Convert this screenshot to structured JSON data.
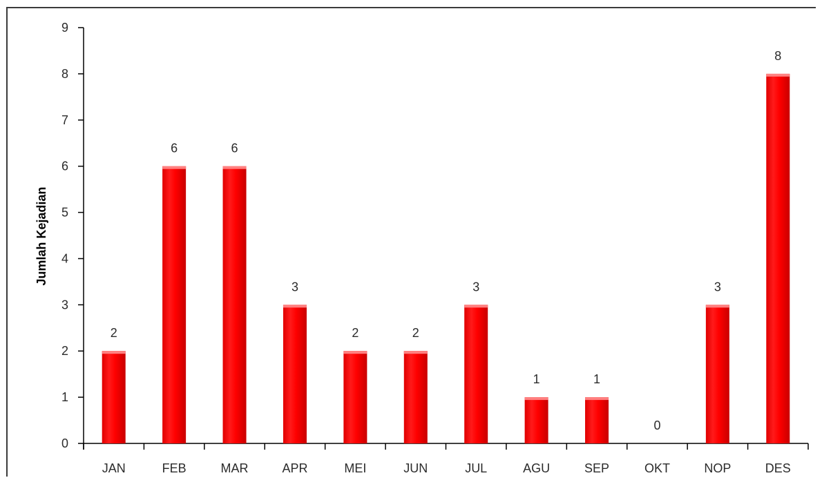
{
  "chart_data": {
    "type": "bar",
    "title": "",
    "xlabel": "",
    "ylabel": "Jumlah Kejadian",
    "ylim": [
      0,
      9
    ],
    "yticks": [
      0,
      1,
      2,
      3,
      4,
      5,
      6,
      7,
      8,
      9
    ],
    "categories": [
      "JAN",
      "FEB",
      "MAR",
      "APR",
      "MEI",
      "JUN",
      "JUL",
      "AGU",
      "SEP",
      "OKT",
      "NOP",
      "DES"
    ],
    "values": [
      2,
      6,
      6,
      3,
      2,
      2,
      3,
      1,
      1,
      0,
      3,
      8
    ],
    "data_labels": true,
    "grid": false,
    "legend": "none",
    "bar_color": "#ff0000",
    "bar_highlight": "#ff8080",
    "axis_color": "#000000",
    "text_color": "#2b2b2b"
  }
}
